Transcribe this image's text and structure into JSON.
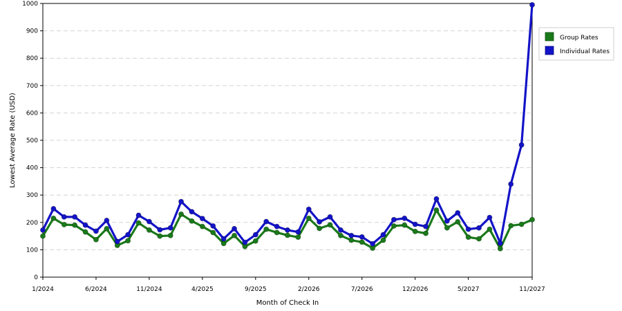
{
  "chart_data": {
    "type": "line",
    "xlabel": "Month of Check In",
    "ylabel": "Lowest Average Rate (USD)",
    "ylim": [
      0,
      1000
    ],
    "yticks": [
      0,
      100,
      200,
      300,
      400,
      500,
      600,
      700,
      800,
      900,
      1000
    ],
    "x_start": "1/2024",
    "x_end": "11/2027",
    "x_tick_labels": [
      "1/2024",
      "6/2024",
      "11/2024",
      "4/2025",
      "9/2025",
      "2/2026",
      "7/2026",
      "12/2026",
      "5/2027",
      "11/2027"
    ],
    "x_tick_index": [
      0,
      5,
      10,
      15,
      20,
      25,
      30,
      35,
      40,
      46
    ],
    "grid": true,
    "legend_position": "right",
    "series": [
      {
        "name": "Group Rates",
        "color": "#1a7a1a",
        "values": [
          150,
          215,
          192,
          190,
          165,
          137,
          177,
          116,
          133,
          198,
          172,
          150,
          152,
          230,
          205,
          185,
          163,
          123,
          152,
          112,
          132,
          175,
          163,
          153,
          146,
          215,
          178,
          191,
          152,
          135,
          128,
          106,
          135,
          187,
          190,
          167,
          160,
          245,
          180,
          202,
          146,
          140,
          175,
          104,
          188,
          193,
          210
        ]
      },
      {
        "name": "Individual Rates",
        "color": "#1313c8",
        "values": [
          172,
          250,
          220,
          220,
          190,
          168,
          207,
          130,
          155,
          226,
          203,
          173,
          180,
          276,
          239,
          214,
          187,
          140,
          177,
          127,
          155,
          203,
          185,
          172,
          165,
          248,
          202,
          220,
          172,
          152,
          147,
          122,
          155,
          210,
          215,
          193,
          185,
          286,
          205,
          235,
          175,
          180,
          218,
          124,
          340,
          483,
          995
        ]
      }
    ]
  }
}
